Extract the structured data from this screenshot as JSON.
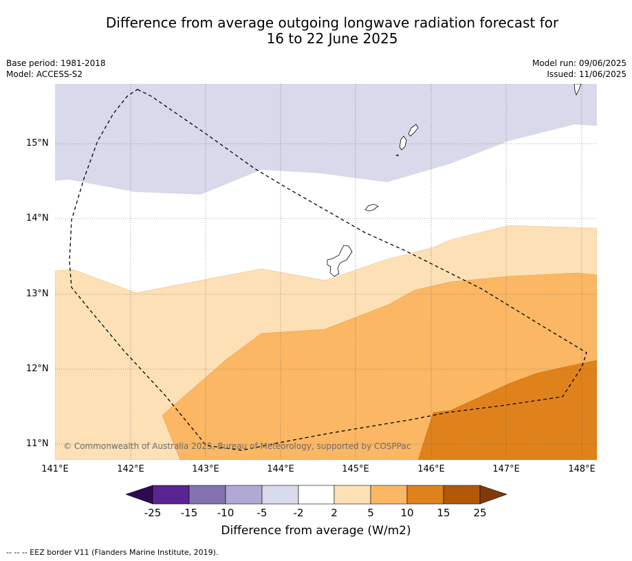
{
  "title": {
    "line1": "Difference from average outgoing longwave radiation forecast for",
    "line2": "16 to 22 June 2025"
  },
  "metadata": {
    "base_period": "Base period: 1981-2018",
    "model": "Model: ACCESS-S2",
    "model_run": "Model run: 09/06/2025",
    "issued": "Issued: 11/06/2025"
  },
  "map": {
    "latitude_ticks": [
      "15°N",
      "14°N",
      "13°N",
      "12°N",
      "11°N"
    ],
    "longitude_ticks": [
      "141°E",
      "142°E",
      "143°E",
      "144°E",
      "145°E",
      "146°E",
      "147°E",
      "148°E"
    ],
    "copyright": "© Commonwealth of Australia 2025, Bureau of Meteorology, supported by COSPPac",
    "fill_colors": {
      "neg_5_to_neg_2": "#d8d9ea",
      "neg_2_to_2": "#ffffff",
      "2_to_5": "#fde0b6",
      "5_to_10": "#fbb763",
      "10_to_15": "#e0821c"
    }
  },
  "colorbar": {
    "labels": [
      "-25",
      "-15",
      "-10",
      "-5",
      "-2",
      "2",
      "5",
      "10",
      "15",
      "25"
    ],
    "colors": [
      "#2f0a53",
      "#5a2590",
      "#8473b1",
      "#b1a8d3",
      "#d8d9ea",
      "#ffffff",
      "#fde0b6",
      "#fbb763",
      "#e0821c",
      "#b35806",
      "#7f3b08"
    ],
    "title": "Difference from average (W/m2)"
  },
  "footnote": "--  --  -- EEZ border V11 (Flanders Marine Institute, 2019)."
}
